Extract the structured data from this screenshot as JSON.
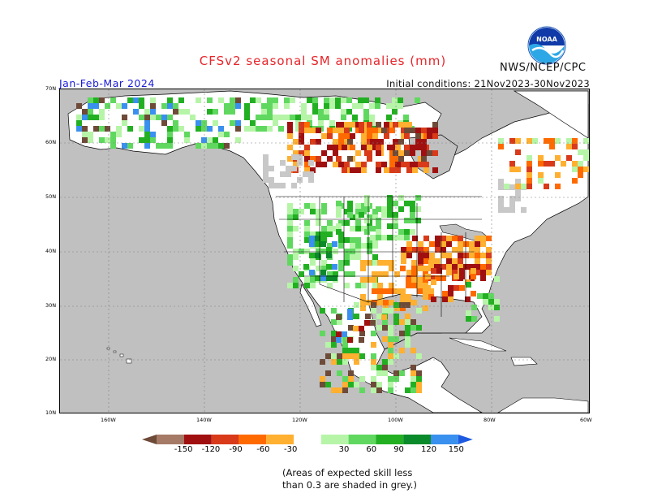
{
  "header": {
    "title": "CFSv2 seasonal SM anomalies (mm)",
    "agency": "NWS/NCEP/CPC",
    "season": "Jan-Feb-Mar 2024",
    "initial_conditions": "Initial conditions: 21Nov2023-30Nov2023",
    "logo_text": "NOAA"
  },
  "map": {
    "projection": "lat-lon",
    "lat_ticks": [
      "70N",
      "60N",
      "50N",
      "40N",
      "30N",
      "20N",
      "10N"
    ],
    "lon_ticks": [
      "160W",
      "140W",
      "120W",
      "100W",
      "80W",
      "60W"
    ],
    "land_color": "#ffffff",
    "ocean_color": "#c0c0c0",
    "low_skill_color": "#c8c8c8",
    "dry_anomaly_regions": [
      "central Canada",
      "Ohio Valley / Mississippi Valley",
      "southern Plains",
      "Mexico plateau"
    ],
    "wet_anomaly_regions": [
      "US Southwest",
      "northern Rockies",
      "Alaska",
      "eastern Canada",
      "southeastern US coast"
    ]
  },
  "legend": {
    "labels": [
      "-150",
      "-120",
      "-90",
      "-60",
      "-30",
      "30",
      "60",
      "90",
      "120",
      "150"
    ],
    "colors": [
      "#6e4a38",
      "#a57a66",
      "#a01010",
      "#d83a1a",
      "#ff6a00",
      "#ffb030",
      "#ffffff",
      "#b6f5a8",
      "#60d860",
      "#22b022",
      "#0a8a2a",
      "#3a90ee",
      "#1d5ae0"
    ]
  },
  "note": {
    "line1": "(Areas of expected skill less",
    "line2": "than 0.3 are shaded in grey.)"
  }
}
